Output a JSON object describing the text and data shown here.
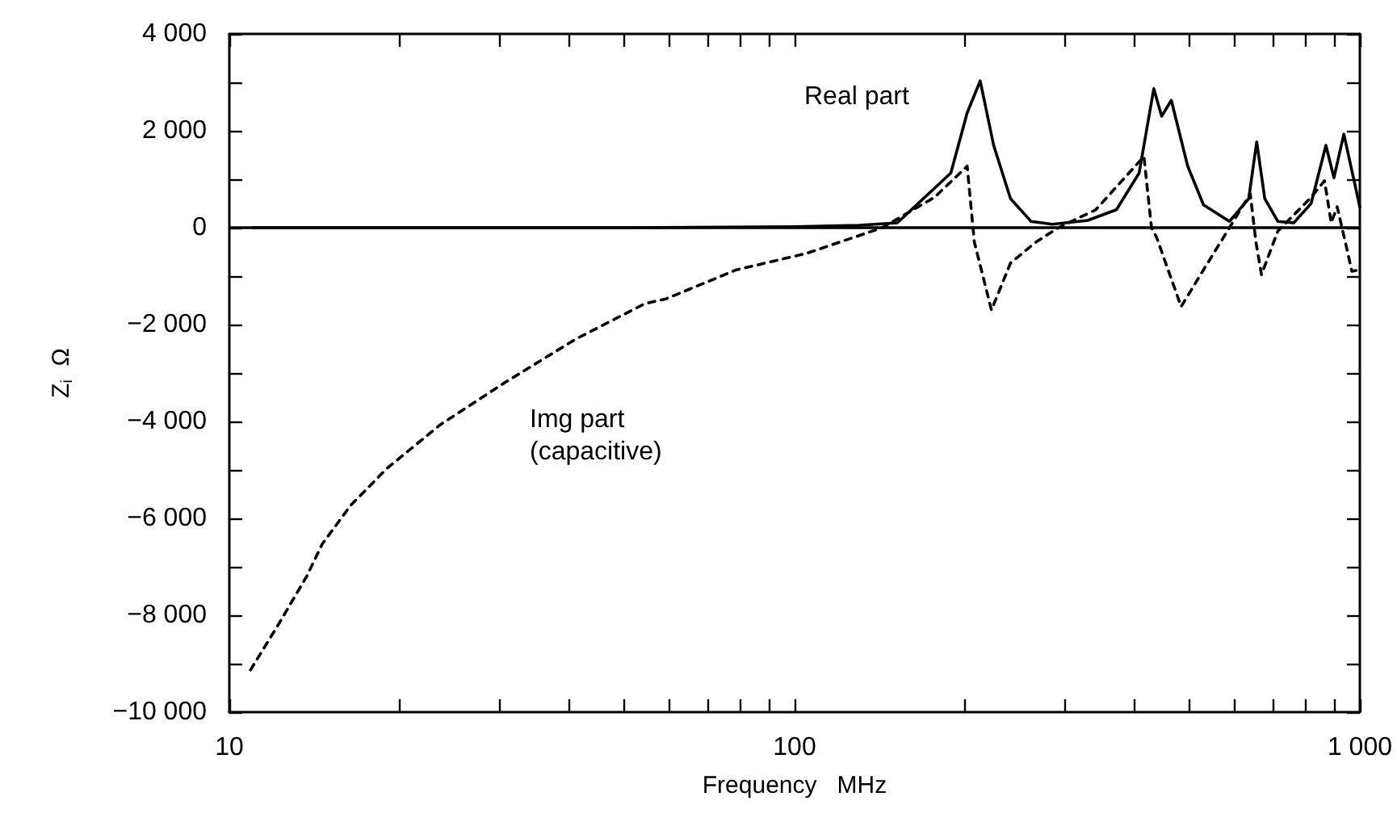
{
  "chart_data": {
    "type": "line",
    "xlabel": "Frequency   MHz",
    "ylabel": "Z$_{i}$  Ω",
    "log": "x",
    "grid": false,
    "legend": false,
    "marker": "none",
    "xlim": [
      10,
      1000
    ],
    "xticks": [
      10,
      {
        "value": 20,
        "label": null
      },
      {
        "value": 30,
        "label": null
      },
      {
        "value": 40,
        "label": null
      },
      {
        "value": 50,
        "label": null
      },
      {
        "value": 60,
        "label": null
      },
      {
        "value": 70,
        "label": null
      },
      {
        "value": 80,
        "label": null
      },
      {
        "value": 90,
        "label": null
      },
      100,
      {
        "value": 200,
        "label": null
      },
      {
        "value": 300,
        "label": null
      },
      {
        "value": 400,
        "label": null
      },
      {
        "value": 500,
        "label": null
      },
      {
        "value": 600,
        "label": null
      },
      {
        "value": 700,
        "label": null
      },
      {
        "value": 800,
        "label": null
      },
      {
        "value": 900,
        "label": null
      },
      {
        "value": 1000,
        "label": "1 000"
      }
    ],
    "ylim": [
      -10000,
      4000
    ],
    "yticks": [
      {
        "value": -10000,
        "label": "−10 000"
      },
      {
        "value": -9000,
        "label": null
      },
      {
        "value": -8000,
        "label": "−8 000"
      },
      {
        "value": -7000,
        "label": null
      },
      {
        "value": -6000,
        "label": "−6 000"
      },
      {
        "value": -5000,
        "label": null
      },
      {
        "value": -4000,
        "label": "−4 000"
      },
      {
        "value": -3000,
        "label": null
      },
      {
        "value": -2000,
        "label": "−2 000"
      },
      {
        "value": -1000,
        "label": null
      },
      0,
      {
        "value": 1000,
        "label": null
      },
      {
        "value": 2000,
        "label": "2 000"
      },
      {
        "value": 3000,
        "label": null
      },
      {
        "value": 4000,
        "label": "4 000"
      }
    ],
    "ref_lines": [
      {
        "axis": "y",
        "value": 0,
        "color": "#000000",
        "line_style": "solid"
      }
    ],
    "series": [
      {
        "name": "Real part",
        "color": "#000000",
        "line_style": "solid",
        "x": [
          11,
          50,
          100,
          130,
          152,
          189,
          202,
          213,
          225,
          241,
          262,
          286,
          330,
          371,
          407,
          432,
          446,
          464,
          496,
          529,
          588,
          636,
          657,
          679,
          716,
          764,
          820,
          871,
          900,
          937,
          1000
        ],
        "values": [
          0,
          0,
          20,
          50,
          100,
          1130,
          2370,
          3030,
          1700,
          600,
          130,
          70,
          150,
          370,
          1130,
          2870,
          2300,
          2630,
          1270,
          470,
          130,
          600,
          1770,
          600,
          130,
          100,
          500,
          1700,
          1030,
          1930,
          430
        ]
      },
      {
        "name": "Img part\n(capacitive)",
        "color": "#000000",
        "line_style": "dashed",
        "x": [
          10.9,
          12.2,
          13.7,
          14.6,
          16.4,
          19.0,
          23.6,
          30.7,
          41.0,
          54.3,
          59.2,
          78.9,
          105,
          143,
          177,
          202,
          208,
          223,
          241,
          267,
          293,
          341,
          415,
          428,
          437,
          483,
          529,
          588,
          640,
          655,
          670,
          716,
          816,
          866,
          890,
          912,
          947,
          968,
          1000
        ],
        "values": [
          -9130,
          -8200,
          -7200,
          -6530,
          -5730,
          -4970,
          -4070,
          -3200,
          -2300,
          -1570,
          -1470,
          -870,
          -530,
          0,
          630,
          1270,
          -300,
          -1700,
          -730,
          -300,
          0,
          370,
          1470,
          0,
          -200,
          -1630,
          -870,
          0,
          700,
          -300,
          -970,
          -70,
          600,
          970,
          100,
          430,
          -400,
          -900,
          -870
        ]
      }
    ]
  }
}
